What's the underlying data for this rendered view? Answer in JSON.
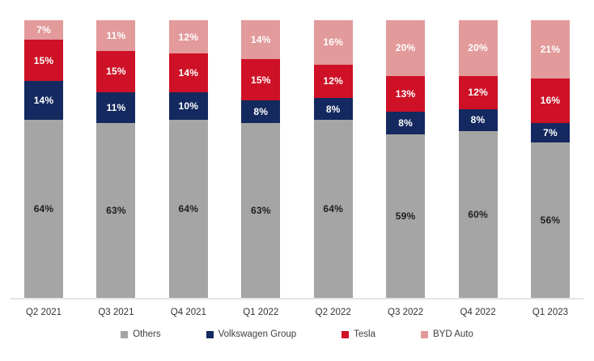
{
  "chart_data": {
    "type": "bar",
    "stacked": true,
    "title": "",
    "xlabel": "",
    "ylabel": "",
    "ylim": [
      0,
      100
    ],
    "grid": false,
    "legend_position": "bottom",
    "value_suffix": "%",
    "categories": [
      "Q2 2021",
      "Q3 2021",
      "Q4 2021",
      "Q1 2022",
      "Q2 2022",
      "Q3 2022",
      "Q4 2022",
      "Q1 2023"
    ],
    "series": [
      {
        "name": "Others",
        "color": "#a5a5a5",
        "label_color": "#1f1f1f",
        "values": [
          64,
          63,
          64,
          63,
          64,
          59,
          60,
          56
        ]
      },
      {
        "name": "Volkswagen Group",
        "color": "#14295f",
        "label_color": "#ffffff",
        "values": [
          14,
          11,
          10,
          8,
          8,
          8,
          8,
          7
        ]
      },
      {
        "name": "Tesla",
        "color": "#ce1126",
        "label_color": "#ffffff",
        "values": [
          15,
          15,
          14,
          15,
          12,
          13,
          12,
          16
        ]
      },
      {
        "name": "BYD Auto",
        "color": "#e29a9b",
        "label_color": "#ffffff",
        "values": [
          7,
          11,
          12,
          14,
          16,
          20,
          20,
          21
        ]
      }
    ]
  },
  "colors": {
    "background": "#ffffff",
    "axis_line": "#e4e4e4",
    "tick_text": "#333333",
    "legend_text": "#404040"
  }
}
